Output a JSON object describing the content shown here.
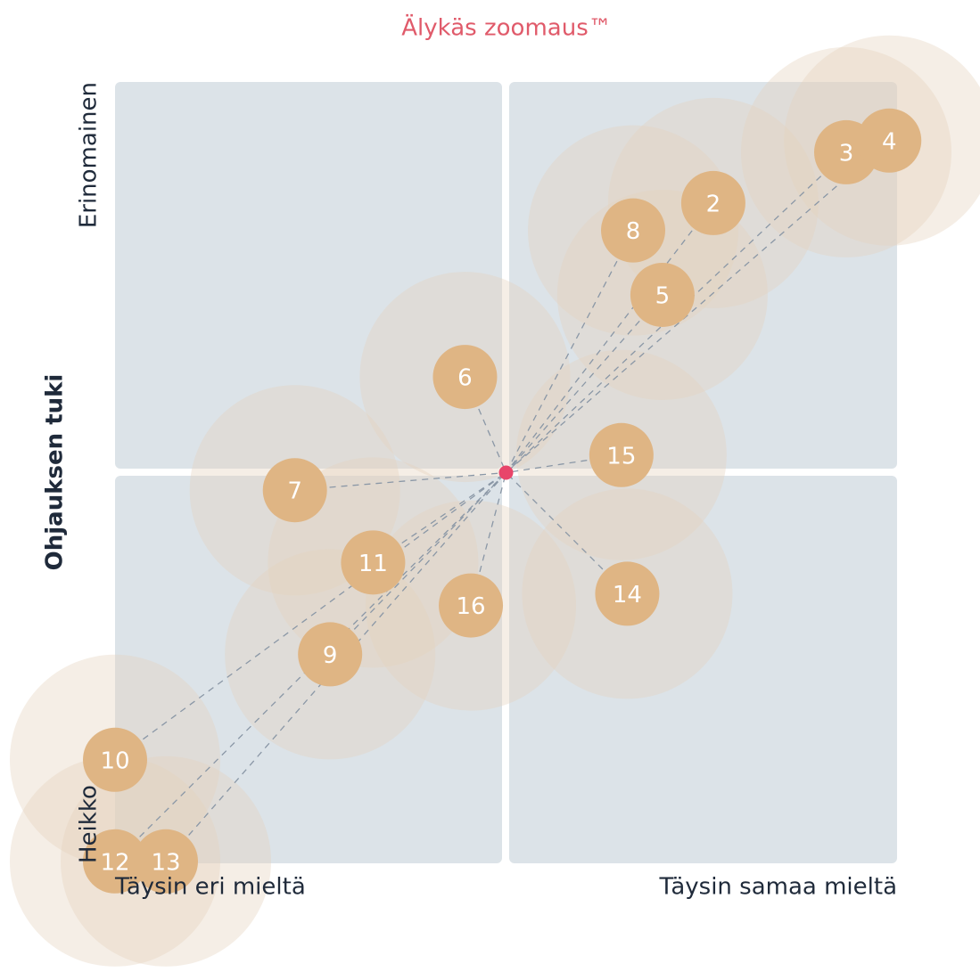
{
  "chart_data": {
    "type": "scatter",
    "title": "Älykäs zoomaus™",
    "ylabel": "Ohjauksen tuki",
    "y_top_label": "Erinomainen",
    "y_bottom_label": "Heikko",
    "x_left_label": "Täysin eri mieltä",
    "x_right_label": "Täysin samaa mieltä",
    "xlim": [
      1,
      5
    ],
    "ylim": [
      1,
      5
    ],
    "color": "#dfb584",
    "halo_color": "#e6d3bc",
    "mean": {
      "x": 3,
      "y": 3,
      "color": "#e8456a"
    },
    "labels": [
      "3",
      "4",
      "2",
      "8",
      "5",
      "6",
      "15",
      "7",
      "11",
      "16",
      "14",
      "9",
      "10",
      "12",
      "13"
    ],
    "x": [
      4.74,
      4.96,
      4.06,
      3.65,
      3.8,
      2.79,
      3.59,
      1.92,
      2.32,
      2.82,
      3.62,
      2.1,
      1.0,
      1.0,
      1.26
    ],
    "y": [
      4.64,
      4.7,
      4.38,
      4.24,
      3.91,
      3.49,
      3.09,
      2.91,
      2.54,
      2.32,
      2.38,
      2.07,
      1.53,
      1.01,
      1.01
    ]
  }
}
